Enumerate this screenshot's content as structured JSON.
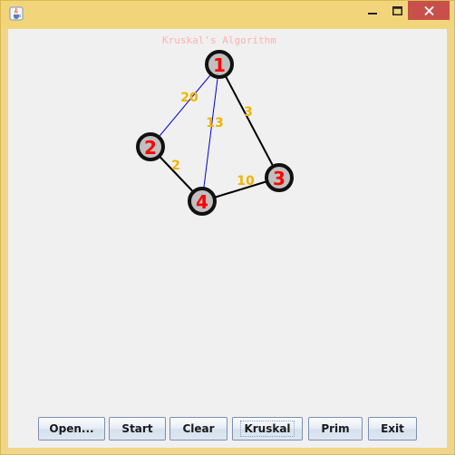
{
  "window": {
    "icon": "java-cup-icon",
    "controls": {
      "minimize_icon": "minimize-icon",
      "maximize_icon": "maximize-icon",
      "close_icon": "close-icon"
    },
    "colors": {
      "frame": "#efd68a",
      "client": "#f0f0f0",
      "close": "#c7504a"
    }
  },
  "canvas": {
    "title": "Kruskal's Algorithm",
    "colors": {
      "node_fill": "#c0c0c0",
      "node_border": "#111111",
      "node_label": "#ff0000",
      "weight_label": "#f0b400",
      "mst_edge": "#000000",
      "other_edge": "#0000cc"
    },
    "nodes": [
      {
        "id": "1",
        "label": "1"
      },
      {
        "id": "2",
        "label": "2"
      },
      {
        "id": "3",
        "label": "3"
      },
      {
        "id": "4",
        "label": "4"
      }
    ],
    "edges": [
      {
        "from": "1",
        "to": "2",
        "weight": "20",
        "in_mst": false
      },
      {
        "from": "1",
        "to": "4",
        "weight": "13",
        "in_mst": false
      },
      {
        "from": "1",
        "to": "3",
        "weight": "3",
        "in_mst": true
      },
      {
        "from": "2",
        "to": "4",
        "weight": "2",
        "in_mst": true
      },
      {
        "from": "4",
        "to": "3",
        "weight": "10",
        "in_mst": true
      }
    ]
  },
  "buttons": {
    "open": "Open...",
    "start": "Start",
    "clear": "Clear",
    "kruskal": "Kruskal",
    "prim": "Prim",
    "exit": "Exit"
  }
}
